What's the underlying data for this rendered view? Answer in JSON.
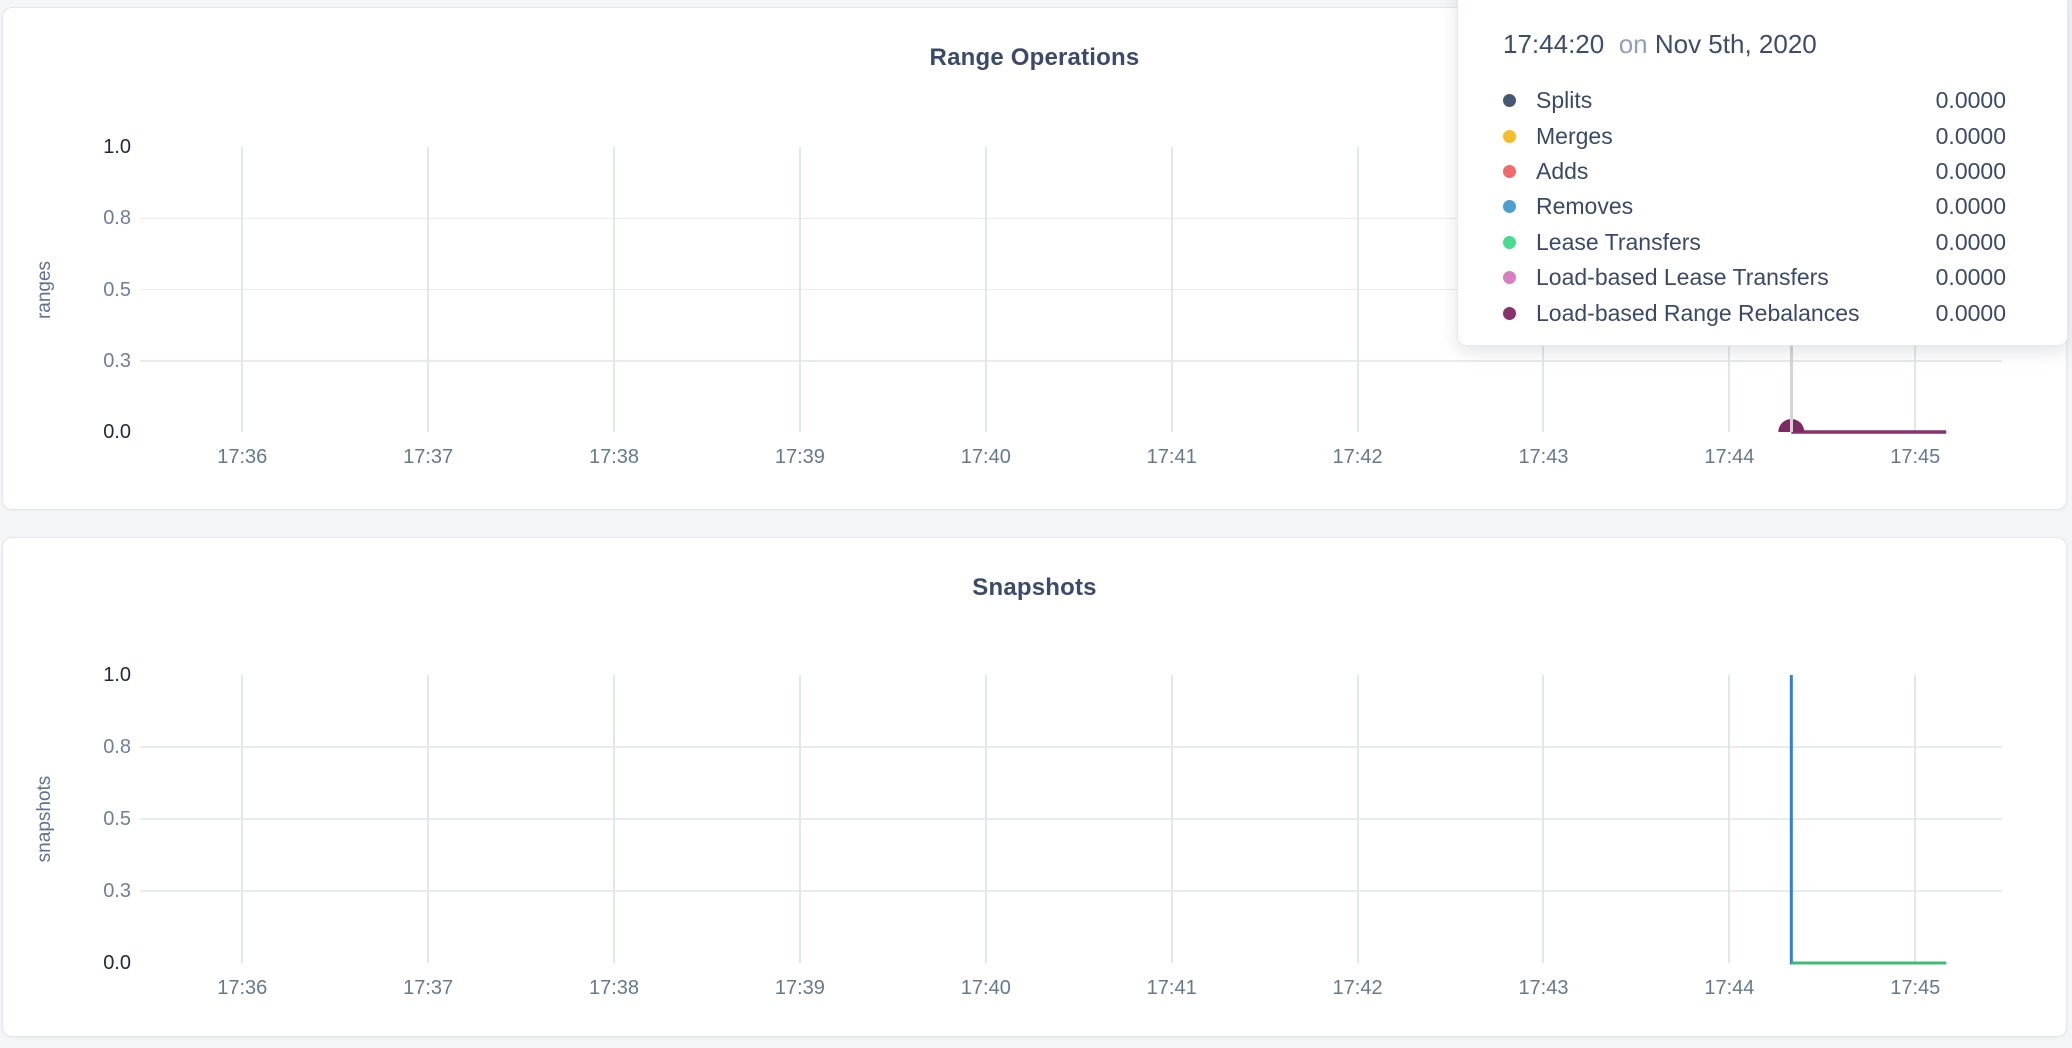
{
  "tooltip": {
    "time": "17:44:20",
    "conjunction": "on",
    "date": "Nov 5th, 2020",
    "rows": [
      {
        "label": "Splits",
        "color": "#475872",
        "value": "0.0000"
      },
      {
        "label": "Merges",
        "color": "#F2BE2C",
        "value": "0.0000"
      },
      {
        "label": "Adds",
        "color": "#F16969",
        "value": "0.0000"
      },
      {
        "label": "Removes",
        "color": "#4E9FD1",
        "value": "0.0000"
      },
      {
        "label": "Lease Transfers",
        "color": "#49D990",
        "value": "0.0000"
      },
      {
        "label": "Load-based Lease Transfers",
        "color": "#D77FBF",
        "value": "0.0000"
      },
      {
        "label": "Load-based Range Rebalances",
        "color": "#87326D",
        "value": "0.0000"
      }
    ]
  },
  "chart_data": [
    {
      "type": "line",
      "title": "Range Operations",
      "ylabel": "ranges",
      "ylim": [
        0,
        1
      ],
      "grid": true,
      "legend_position": "tooltip-only",
      "yticks": [
        {
          "label": "0.0",
          "value": 0.0
        },
        {
          "label": "0.3",
          "value": 0.25
        },
        {
          "label": "0.5",
          "value": 0.5
        },
        {
          "label": "0.8",
          "value": 0.75
        },
        {
          "label": "1.0",
          "value": 1.0
        }
      ],
      "xlim": [
        "17:35:27",
        "17:45:28"
      ],
      "xticks": [
        "17:36",
        "17:37",
        "17:38",
        "17:39",
        "17:40",
        "17:41",
        "17:42",
        "17:43",
        "17:44",
        "17:45"
      ],
      "series": [
        {
          "name": "Load-based Range Rebalances",
          "color": "#87326D",
          "points": [
            [
              "17:44:20",
              0
            ],
            [
              "17:45:10",
              0
            ]
          ]
        }
      ],
      "hover": {
        "time": "17:44:20",
        "value": 0,
        "marker_color": "#7c2a62",
        "guideline": true
      }
    },
    {
      "type": "line",
      "title": "Snapshots",
      "ylabel": "snapshots",
      "ylim": [
        0,
        1
      ],
      "grid": true,
      "yticks": [
        {
          "label": "0.0",
          "value": 0.0
        },
        {
          "label": "0.3",
          "value": 0.25
        },
        {
          "label": "0.5",
          "value": 0.5
        },
        {
          "label": "0.8",
          "value": 0.75
        },
        {
          "label": "1.0",
          "value": 1.0
        }
      ],
      "xlim": [
        "17:35:27",
        "17:45:28"
      ],
      "xticks": [
        "17:36",
        "17:37",
        "17:38",
        "17:39",
        "17:40",
        "17:41",
        "17:42",
        "17:43",
        "17:44",
        "17:45"
      ],
      "series": [
        {
          "color": "#2b80e8",
          "points": [
            [
              "17:44:20",
              1
            ],
            [
              "17:44:20",
              0
            ],
            [
              "17:45:10",
              0
            ]
          ]
        },
        {
          "color": "#3cbd72",
          "points": [
            [
              "17:44:20",
              0
            ],
            [
              "17:45:10",
              0
            ]
          ]
        }
      ]
    }
  ]
}
